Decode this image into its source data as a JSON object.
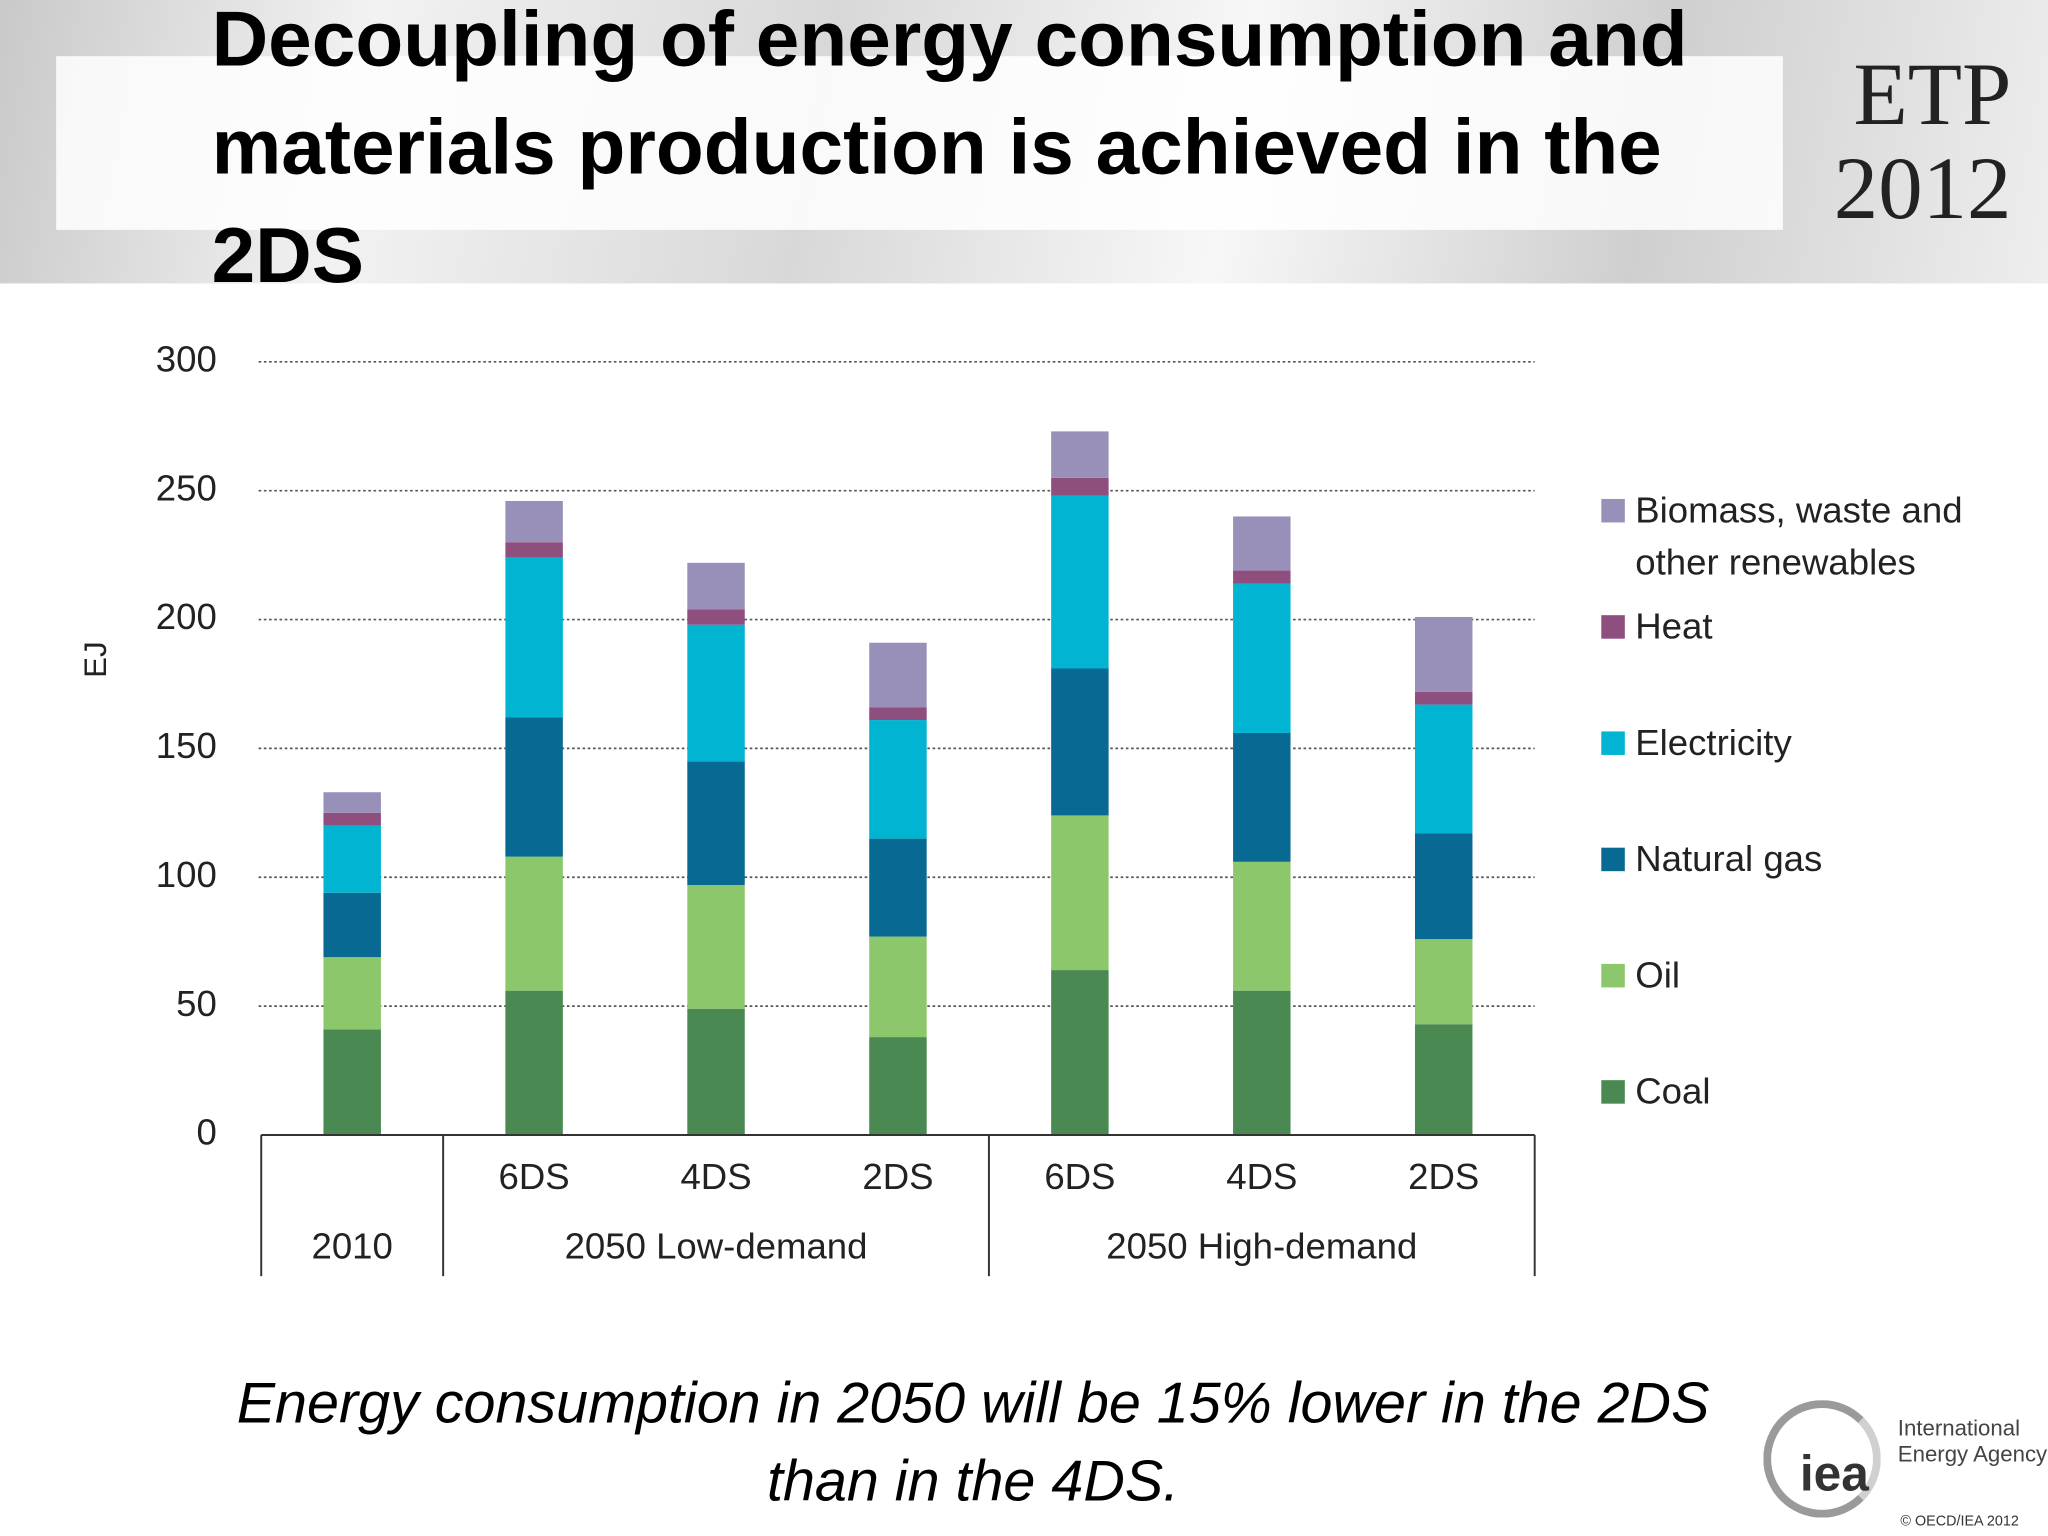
{
  "header": {
    "title": "Decoupling of energy consumption and materials production is achieved in the 2DS",
    "logo_line1": "ETP",
    "logo_line2": "2012"
  },
  "chart_data": {
    "type": "bar",
    "stacked": true,
    "ylabel": "EJ",
    "categories": [
      null,
      "6DS",
      "4DS",
      "2DS",
      "6DS",
      "4DS",
      "2DS"
    ],
    "groups": [
      {
        "label": "2010",
        "size": 1
      },
      {
        "label": "2050 Low-demand",
        "size": 3
      },
      {
        "label": "2050 High-demand",
        "size": 3
      }
    ],
    "series": [
      {
        "name": "Coal",
        "color": "#4a8a52",
        "values": [
          41,
          56,
          49,
          38,
          64,
          56,
          43
        ]
      },
      {
        "name": "Oil",
        "color": "#8dc76b",
        "values": [
          28,
          52,
          48,
          39,
          60,
          50,
          33
        ]
      },
      {
        "name": "Natural gas",
        "color": "#086a92",
        "values": [
          25,
          54,
          48,
          38,
          57,
          50,
          41
        ]
      },
      {
        "name": "Electricity",
        "color": "#00b4d2",
        "values": [
          26,
          62,
          53,
          46,
          67,
          58,
          50
        ]
      },
      {
        "name": "Heat",
        "color": "#8e4e7e",
        "values": [
          5,
          6,
          6,
          5,
          7,
          5,
          5
        ]
      },
      {
        "name": "Biomass, waste and other renewables",
        "color": "#9890b8",
        "values": [
          8,
          16,
          18,
          25,
          18,
          21,
          29
        ]
      }
    ],
    "ylim": [
      0,
      300
    ],
    "yticks": [
      0,
      50,
      100,
      150,
      200,
      250,
      300
    ],
    "grid": true,
    "legend": "right"
  },
  "footer": {
    "caption": "Energy consumption in 2050 will be 15% lower in the 2DS than in the 4DS.",
    "logo": "iea",
    "agency_line1": "International",
    "agency_line2": "Energy Agency",
    "copyright": "© OECD/IEA 2012"
  }
}
